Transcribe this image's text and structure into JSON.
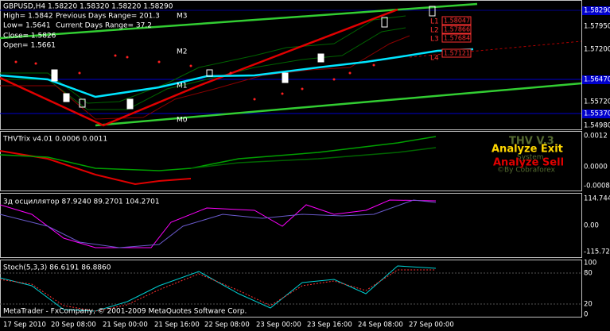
{
  "main": {
    "symbol_line": "GBPUSD,H4  1.58220 1.58320 1.58220 1.58290",
    "high": "High= 1.5842",
    "prev_range": "Previous Days Range= 201.3",
    "low": "Low= 1.5641",
    "cur_range": "Current Days Range= 37.2",
    "close": "Close= 1.5826",
    "open": "Open= 1.5661",
    "levels": [
      "M3",
      "M2",
      "M1",
      "M0"
    ],
    "right_labels": [
      "L1",
      "L2",
      "L3",
      "L4"
    ],
    "price_boxes": [
      "1.58047",
      "1.57866",
      "1.57684",
      "1.57121"
    ],
    "price_axis": [
      "1.58290",
      "1.57950",
      "1.57200",
      "1.56470",
      "1.55720",
      "1.55370",
      "1.54980"
    ]
  },
  "trix": {
    "title": "THVTrix v4.01 0.0006 0.0011",
    "axis": [
      "0.0012",
      "0.0000",
      "-0.0008"
    ],
    "brand": "THV V.3",
    "exit": "Analyze Exit",
    "system": "System",
    "sell": "Analyze Sell",
    "by": "©By Cobraforex"
  },
  "osc": {
    "title": "3д осциллятор 87.9240 89.2701 104.2701",
    "axis": [
      "114.7440",
      "0.00",
      "-115.7200"
    ]
  },
  "stoch": {
    "title": "Stoch(5,3,3) 86.6191 86.8860",
    "axis": [
      "100",
      "80",
      "20",
      "0"
    ],
    "copyright": "MetaTrader - FxCompany, © 2001-2009 MetaQuotes Software Corp."
  },
  "time_axis": [
    "17 Sep 2010",
    "20 Sep 08:00",
    "21 Sep 00:00",
    "21 Sep 16:00",
    "22 Sep 08:00",
    "23 Sep 00:00",
    "23 Sep 16:00",
    "24 Sep 08:00",
    "27 Sep 00:00"
  ]
}
